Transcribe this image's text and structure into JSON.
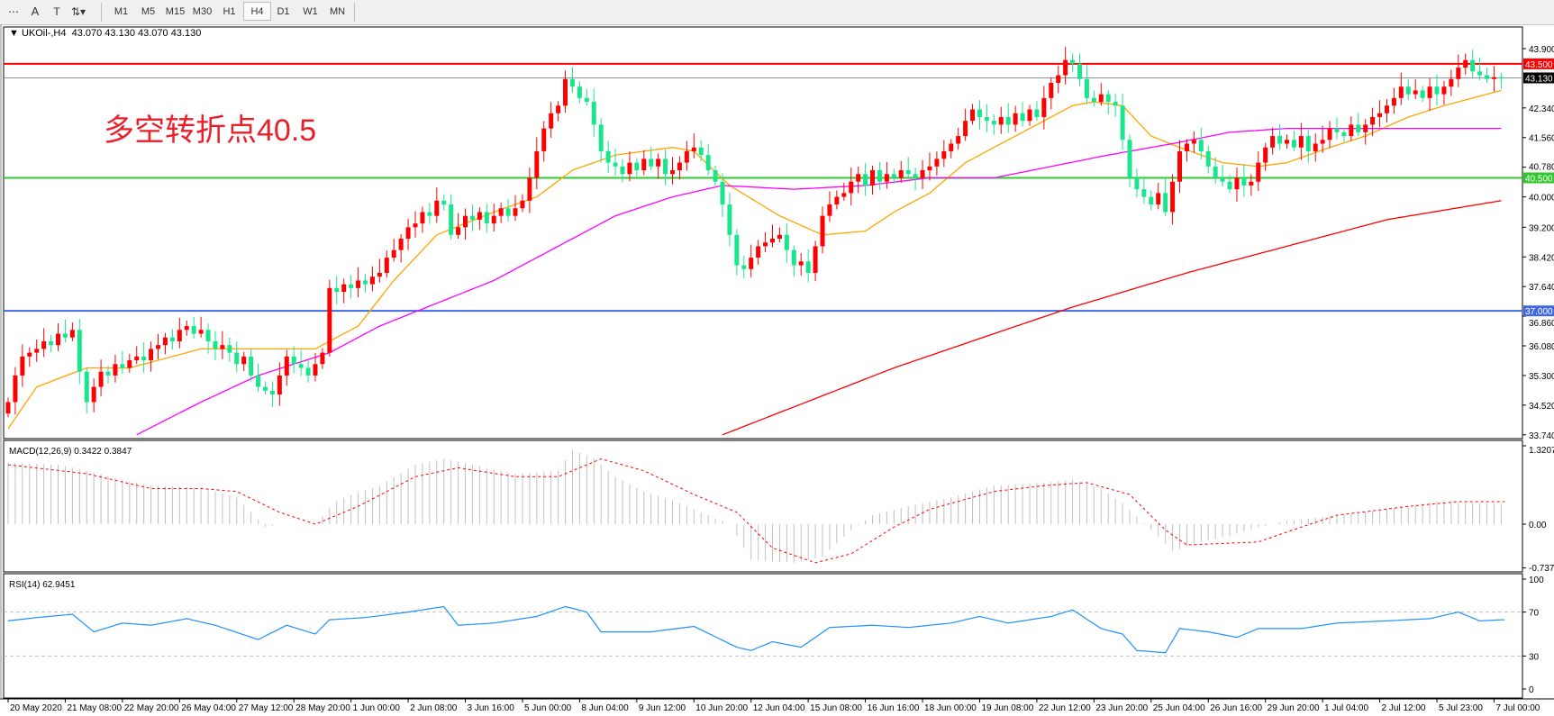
{
  "toolbar": {
    "tools": [
      {
        "name": "period-separator-icon",
        "glyph": "⋯"
      },
      {
        "name": "text-tool-icon",
        "glyph": "A"
      },
      {
        "name": "text-label-tool-icon",
        "glyph": "T"
      },
      {
        "name": "arrows-tool-icon",
        "glyph": "⇅▾"
      }
    ],
    "timeframes": [
      "M1",
      "M5",
      "M15",
      "M30",
      "H1",
      "H4",
      "D1",
      "W1",
      "MN"
    ],
    "active_timeframe": "H4"
  },
  "chart_header": {
    "symbol": "UKOil-,H4",
    "ohlc": "43.070 43.130 43.070 43.130"
  },
  "annotation": "多空转折点40.5",
  "colors": {
    "bull": "#ff0000",
    "bear": "#19e68c",
    "ma_fast": "#ffa500",
    "ma_mid": "#ff00ff",
    "ma_slow": "#ff0000",
    "rsi": "#1e90ff",
    "macd_hist": "#c0c0c0",
    "macd_signal": "#ff0000"
  },
  "chart_data": [
    {
      "type": "candlestick",
      "pane": "price",
      "ylim": [
        33.74,
        43.9
      ],
      "y_ticks": [
        "43.900",
        "42.340",
        "41.560",
        "40.780",
        "40.000",
        "39.200",
        "38.420",
        "37.640",
        "36.860",
        "36.080",
        "35.300",
        "34.520",
        "33.740"
      ],
      "horizontal_lines": [
        {
          "value": 43.5,
          "label": "43.500",
          "color": "#ff0000"
        },
        {
          "value": 43.13,
          "label": "43.130",
          "color": "#000000",
          "line_color": "#8796a5"
        },
        {
          "value": 40.5,
          "label": "40.500",
          "color": "#32c832"
        },
        {
          "value": 37.0,
          "label": "37.000",
          "color": "#4169e1"
        }
      ],
      "close": [
        34.6,
        35.3,
        35.8,
        35.9,
        36.0,
        36.2,
        36.1,
        36.4,
        36.3,
        36.5,
        35.4,
        34.6,
        35.0,
        35.4,
        35.3,
        35.6,
        35.5,
        35.7,
        35.8,
        35.7,
        36.0,
        36.1,
        36.3,
        36.2,
        36.5,
        36.6,
        36.4,
        36.5,
        36.2,
        36.0,
        36.1,
        35.9,
        35.6,
        35.8,
        35.3,
        35.0,
        34.9,
        34.8,
        35.3,
        35.8,
        35.6,
        35.5,
        35.3,
        35.6,
        35.9,
        37.6,
        37.5,
        37.7,
        37.6,
        37.8,
        37.7,
        37.9,
        38.0,
        38.4,
        38.6,
        38.9,
        39.2,
        39.3,
        39.6,
        39.5,
        39.9,
        39.8,
        39.0,
        39.2,
        39.5,
        39.4,
        39.6,
        39.3,
        39.5,
        39.7,
        39.5,
        39.7,
        39.9,
        40.5,
        41.2,
        41.8,
        42.2,
        42.4,
        43.1,
        42.9,
        42.6,
        42.5,
        41.9,
        41.2,
        40.9,
        40.8,
        40.6,
        40.9,
        40.7,
        41.0,
        40.8,
        41.0,
        40.6,
        40.7,
        40.9,
        41.2,
        41.3,
        41.1,
        40.7,
        40.4,
        39.8,
        39.0,
        38.2,
        38.1,
        38.4,
        38.7,
        38.8,
        38.9,
        39.0,
        38.6,
        38.2,
        38.3,
        38.0,
        38.7,
        39.5,
        39.8,
        40.0,
        40.1,
        40.4,
        40.6,
        40.3,
        40.7,
        40.4,
        40.6,
        40.5,
        40.7,
        40.6,
        40.5,
        40.7,
        40.8,
        41.0,
        41.2,
        41.4,
        41.6,
        42.0,
        42.3,
        42.1,
        42.0,
        41.9,
        42.1,
        41.9,
        42.2,
        42.0,
        42.3,
        42.1,
        42.6,
        43.0,
        43.2,
        43.6,
        43.5,
        43.1,
        42.6,
        42.5,
        42.7,
        42.5,
        42.4,
        41.5,
        40.5,
        40.2,
        40.0,
        39.8,
        40.1,
        39.6,
        40.4,
        41.2,
        41.4,
        41.5,
        41.2,
        40.8,
        40.5,
        40.4,
        40.2,
        40.5,
        40.3,
        40.4,
        40.9,
        41.3,
        41.6,
        41.4,
        41.5,
        41.3,
        41.6,
        41.2,
        41.4,
        41.5,
        41.8,
        41.7,
        41.6,
        41.9,
        41.7,
        41.9,
        42.1,
        42.2,
        42.4,
        42.6,
        42.9,
        42.7,
        42.8,
        42.6,
        42.9,
        42.7,
        42.9,
        43.1,
        43.4,
        43.6,
        43.3,
        43.2,
        43.1,
        43.15,
        43.13
      ],
      "moving_averages": [
        {
          "color_key": "ma_fast",
          "points": [
            [
              0,
              33.9
            ],
            [
              4,
              35.0
            ],
            [
              11,
              35.5
            ],
            [
              17,
              35.5
            ],
            [
              27,
              36.0
            ],
            [
              35,
              36.0
            ],
            [
              43,
              36.0
            ],
            [
              49,
              36.6
            ],
            [
              54,
              37.8
            ],
            [
              60,
              39.0
            ],
            [
              68,
              39.6
            ],
            [
              74,
              40.0
            ],
            [
              79,
              40.7
            ],
            [
              85,
              41.1
            ],
            [
              93,
              41.3
            ],
            [
              96,
              41.2
            ],
            [
              101,
              40.3
            ],
            [
              108,
              39.5
            ],
            [
              114,
              39.0
            ],
            [
              120,
              39.1
            ],
            [
              124,
              39.6
            ],
            [
              129,
              40.1
            ],
            [
              134,
              40.9
            ],
            [
              138,
              41.3
            ],
            [
              145,
              42.0
            ],
            [
              149,
              42.4
            ],
            [
              152,
              42.5
            ],
            [
              156,
              42.4
            ],
            [
              160,
              41.6
            ],
            [
              164,
              41.3
            ],
            [
              170,
              40.9
            ],
            [
              175,
              40.8
            ],
            [
              179,
              40.9
            ],
            [
              185,
              41.3
            ],
            [
              190,
              41.6
            ],
            [
              196,
              42.1
            ],
            [
              201,
              42.4
            ],
            [
              209,
              42.8
            ]
          ]
        },
        {
          "color_key": "ma_mid",
          "points": [
            [
              18,
              33.74
            ],
            [
              27,
              34.6
            ],
            [
              35,
              35.3
            ],
            [
              45,
              35.9
            ],
            [
              52,
              36.6
            ],
            [
              60,
              37.2
            ],
            [
              68,
              37.8
            ],
            [
              77,
              38.7
            ],
            [
              85,
              39.5
            ],
            [
              93,
              40.0
            ],
            [
              100,
              40.3
            ],
            [
              110,
              40.2
            ],
            [
              120,
              40.3
            ],
            [
              129,
              40.5
            ],
            [
              138,
              40.5
            ],
            [
              146,
              40.8
            ],
            [
              154,
              41.1
            ],
            [
              163,
              41.4
            ],
            [
              171,
              41.7
            ],
            [
              179,
              41.8
            ],
            [
              193,
              41.8
            ],
            [
              209,
              41.8
            ]
          ]
        },
        {
          "color_key": "ma_slow",
          "points": [
            [
              100,
              33.74
            ],
            [
              124,
              35.5
            ],
            [
              138,
              36.4
            ],
            [
              149,
              37.1
            ],
            [
              165,
              38.0
            ],
            [
              179,
              38.7
            ],
            [
              193,
              39.4
            ],
            [
              209,
              39.9
            ]
          ]
        }
      ],
      "x_labels": [
        "20 May 2020",
        "21 May 08:00",
        "22 May 20:00",
        "26 May 04:00",
        "27 May 12:00",
        "28 May 20:00",
        "1 Jun 00:00",
        "2 Jun 08:00",
        "3 Jun 16:00",
        "5 Jun 00:00",
        "8 Jun 04:00",
        "9 Jun 12:00",
        "10 Jun 20:00",
        "12 Jun 04:00",
        "15 Jun 08:00",
        "16 Jun 16:00",
        "18 Jun 00:00",
        "19 Jun 08:00",
        "22 Jun 12:00",
        "23 Jun 20:00",
        "25 Jun 04:00",
        "26 Jun 16:00",
        "29 Jun 20:00",
        "1 Jul 04:00",
        "2 Jul 12:00",
        "5 Jul 23:00",
        "7 Jul 00:00"
      ]
    },
    {
      "type": "bar",
      "pane": "macd",
      "label": "MACD(12,26,9) 0.3422 0.3847",
      "ylim": [
        -0.7372,
        1.3207
      ],
      "y_ticks": [
        "1.3207",
        "0.00",
        "-0.7372"
      ],
      "histogram_points": [
        [
          0,
          1.04
        ],
        [
          7,
          1.0
        ],
        [
          11,
          0.9
        ],
        [
          16,
          0.75
        ],
        [
          20,
          0.65
        ],
        [
          27,
          0.62
        ],
        [
          32,
          0.45
        ],
        [
          36,
          -0.05
        ],
        [
          38,
          0.0
        ],
        [
          43,
          0.0
        ],
        [
          46,
          0.4
        ],
        [
          52,
          0.65
        ],
        [
          57,
          1.0
        ],
        [
          61,
          1.1
        ],
        [
          65,
          1.0
        ],
        [
          71,
          0.85
        ],
        [
          77,
          0.9
        ],
        [
          79,
          1.25
        ],
        [
          82,
          1.1
        ],
        [
          85,
          0.8
        ],
        [
          89,
          0.55
        ],
        [
          93,
          0.4
        ],
        [
          97,
          0.2
        ],
        [
          101,
          0.0
        ],
        [
          104,
          -0.6
        ],
        [
          110,
          -0.65
        ],
        [
          114,
          -0.55
        ],
        [
          118,
          -0.1
        ],
        [
          121,
          0.15
        ],
        [
          126,
          0.3
        ],
        [
          132,
          0.45
        ],
        [
          138,
          0.65
        ],
        [
          145,
          0.7
        ],
        [
          149,
          0.75
        ],
        [
          153,
          0.6
        ],
        [
          156,
          0.35
        ],
        [
          160,
          -0.1
        ],
        [
          163,
          -0.45
        ],
        [
          167,
          -0.3
        ],
        [
          171,
          -0.2
        ],
        [
          175,
          -0.05
        ],
        [
          179,
          0.05
        ],
        [
          186,
          0.15
        ],
        [
          193,
          0.25
        ],
        [
          200,
          0.38
        ],
        [
          209,
          0.34
        ]
      ],
      "signal_points": [
        [
          0,
          1.0
        ],
        [
          11,
          0.85
        ],
        [
          20,
          0.6
        ],
        [
          27,
          0.6
        ],
        [
          32,
          0.55
        ],
        [
          38,
          0.2
        ],
        [
          43,
          0.0
        ],
        [
          49,
          0.3
        ],
        [
          57,
          0.8
        ],
        [
          63,
          0.95
        ],
        [
          71,
          0.8
        ],
        [
          77,
          0.8
        ],
        [
          83,
          1.1
        ],
        [
          89,
          0.9
        ],
        [
          96,
          0.5
        ],
        [
          102,
          0.2
        ],
        [
          107,
          -0.4
        ],
        [
          113,
          -0.65
        ],
        [
          118,
          -0.5
        ],
        [
          124,
          -0.05
        ],
        [
          129,
          0.25
        ],
        [
          138,
          0.55
        ],
        [
          145,
          0.65
        ],
        [
          151,
          0.7
        ],
        [
          157,
          0.5
        ],
        [
          162,
          -0.1
        ],
        [
          165,
          -0.35
        ],
        [
          175,
          -0.3
        ],
        [
          181,
          -0.05
        ],
        [
          186,
          0.15
        ],
        [
          196,
          0.3
        ],
        [
          203,
          0.38
        ],
        [
          209,
          0.38
        ]
      ]
    },
    {
      "type": "line",
      "pane": "rsi",
      "label": "RSI(14) 62.9451",
      "ylim": [
        0,
        100
      ],
      "y_ticks": [
        "100",
        "70",
        "30",
        "0"
      ],
      "levels": [
        70,
        30
      ],
      "points": [
        [
          0,
          62
        ],
        [
          4,
          65
        ],
        [
          9,
          68
        ],
        [
          12,
          52
        ],
        [
          16,
          60
        ],
        [
          20,
          58
        ],
        [
          25,
          64
        ],
        [
          29,
          58
        ],
        [
          35,
          45
        ],
        [
          39,
          58
        ],
        [
          43,
          50
        ],
        [
          45,
          63
        ],
        [
          50,
          65
        ],
        [
          56,
          70
        ],
        [
          61,
          75
        ],
        [
          63,
          58
        ],
        [
          68,
          60
        ],
        [
          74,
          66
        ],
        [
          78,
          75
        ],
        [
          81,
          70
        ],
        [
          83,
          52
        ],
        [
          90,
          52
        ],
        [
          96,
          57
        ],
        [
          102,
          38
        ],
        [
          104,
          35
        ],
        [
          107,
          43
        ],
        [
          111,
          38
        ],
        [
          115,
          56
        ],
        [
          121,
          58
        ],
        [
          126,
          56
        ],
        [
          132,
          60
        ],
        [
          136,
          66
        ],
        [
          140,
          60
        ],
        [
          146,
          66
        ],
        [
          149,
          72
        ],
        [
          153,
          55
        ],
        [
          156,
          50
        ],
        [
          158,
          35
        ],
        [
          162,
          33
        ],
        [
          164,
          55
        ],
        [
          168,
          52
        ],
        [
          172,
          47
        ],
        [
          175,
          55
        ],
        [
          181,
          55
        ],
        [
          186,
          60
        ],
        [
          193,
          62
        ],
        [
          199,
          64
        ],
        [
          203,
          70
        ],
        [
          206,
          62
        ],
        [
          209,
          62.9451
        ]
      ]
    }
  ]
}
